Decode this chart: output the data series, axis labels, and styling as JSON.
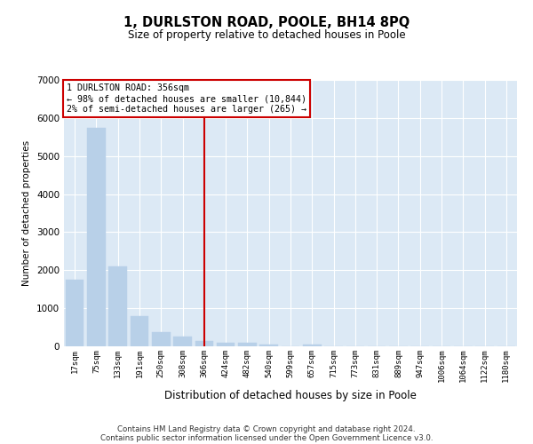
{
  "title": "1, DURLSTON ROAD, POOLE, BH14 8PQ",
  "subtitle": "Size of property relative to detached houses in Poole",
  "xlabel": "Distribution of detached houses by size in Poole",
  "ylabel": "Number of detached properties",
  "categories": [
    "17sqm",
    "75sqm",
    "133sqm",
    "191sqm",
    "250sqm",
    "308sqm",
    "366sqm",
    "424sqm",
    "482sqm",
    "540sqm",
    "599sqm",
    "657sqm",
    "715sqm",
    "773sqm",
    "831sqm",
    "889sqm",
    "947sqm",
    "1006sqm",
    "1064sqm",
    "1122sqm",
    "1180sqm"
  ],
  "values": [
    1750,
    5750,
    2100,
    800,
    380,
    260,
    130,
    95,
    95,
    55,
    0,
    55,
    0,
    0,
    0,
    0,
    0,
    0,
    0,
    0,
    0
  ],
  "bar_color": "#b8d0e8",
  "bar_edgecolor": "#b8d0e8",
  "vline_x": 6,
  "vline_color": "#cc0000",
  "annotation_line1": "1 DURLSTON ROAD: 356sqm",
  "annotation_line2": "← 98% of detached houses are smaller (10,844)",
  "annotation_line3": "2% of semi-detached houses are larger (265) →",
  "annotation_box_color": "#cc0000",
  "background_color": "#dce9f5",
  "ylim": [
    0,
    7000
  ],
  "yticks": [
    0,
    1000,
    2000,
    3000,
    4000,
    5000,
    6000,
    7000
  ],
  "footer_line1": "Contains HM Land Registry data © Crown copyright and database right 2024.",
  "footer_line2": "Contains public sector information licensed under the Open Government Licence v3.0."
}
